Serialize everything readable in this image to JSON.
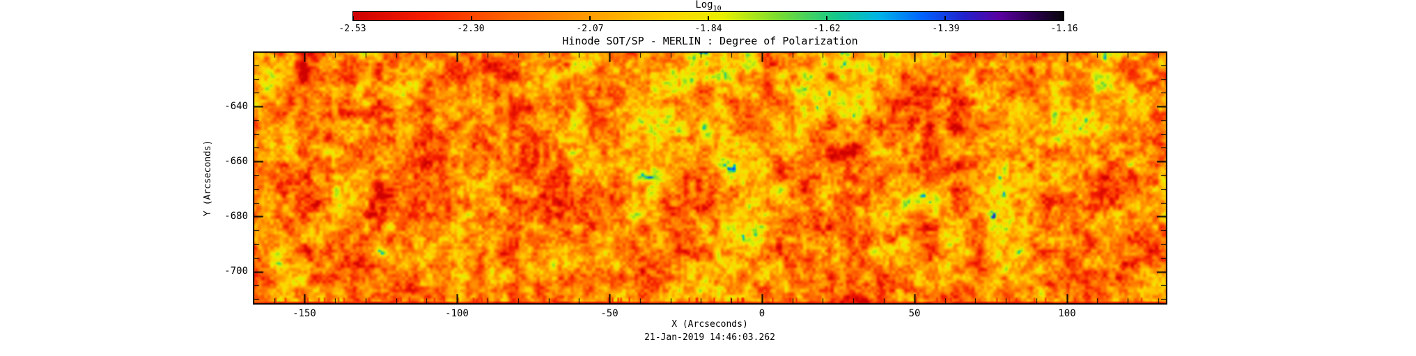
{
  "page": {
    "background": "#ffffff",
    "axis_color": "#000000"
  },
  "colorbar": {
    "label_main": "Log",
    "label_sub": "10",
    "tick_labels": [
      "-2.53",
      "-2.30",
      "-2.07",
      "-1.84",
      "-1.62",
      "-1.39",
      "-1.16"
    ]
  },
  "plot": {
    "title": "Hinode SOT/SP - MERLIN : Degree of Polarization",
    "xlabel": "X (Arcseconds)",
    "ylabel": "Y (Arcseconds)",
    "date_label": "21-Jan-2019 14:46:03.262",
    "x_tick_labels": [
      "-150",
      "-100",
      "-50",
      "0",
      "50",
      "100"
    ],
    "y_tick_labels": [
      "-640",
      "-660",
      "-680",
      "-700"
    ]
  },
  "chart_data": {
    "type": "heatmap",
    "title": "Hinode SOT/SP - MERLIN : Degree of Polarization",
    "xlabel": "X (Arcseconds)",
    "ylabel": "Y (Arcseconds)",
    "timestamp": "21-Jan-2019 14:46:03.262",
    "xlim": [
      -167,
      133
    ],
    "ylim": [
      -712,
      -620
    ],
    "x_ticks": [
      -150,
      -100,
      -50,
      0,
      50,
      100
    ],
    "y_ticks": [
      -640,
      -660,
      -680,
      -700
    ],
    "x_minor_step": 10,
    "y_minor_step": 5,
    "colorbar": {
      "label": "Log10",
      "quantity": "Degree of Polarization (log10)",
      "range": [
        -2.53,
        -1.16
      ],
      "ticks": [
        -2.53,
        -2.3,
        -2.07,
        -1.84,
        -1.62,
        -1.39,
        -1.16
      ]
    },
    "colormap": [
      {
        "t": 0.0,
        "color": "#cc0000"
      },
      {
        "t": 0.1,
        "color": "#f61e00"
      },
      {
        "t": 0.22,
        "color": "#ff6400"
      },
      {
        "t": 0.33,
        "color": "#ff9b00"
      },
      {
        "t": 0.44,
        "color": "#ffd200"
      },
      {
        "t": 0.52,
        "color": "#e8f000"
      },
      {
        "t": 0.6,
        "color": "#78dc32"
      },
      {
        "t": 0.68,
        "color": "#14c88c"
      },
      {
        "t": 0.74,
        "color": "#00b4e6"
      },
      {
        "t": 0.8,
        "color": "#0064ff"
      },
      {
        "t": 0.86,
        "color": "#2222cc"
      },
      {
        "t": 0.91,
        "color": "#5a00a0"
      },
      {
        "t": 0.96,
        "color": "#28004b"
      },
      {
        "t": 1.0,
        "color": "#060608"
      }
    ],
    "field_summary": "Granular solar scan map: bulk pixels near log10 -2.4 to -2.0 (red/orange/yellow mottling), abundant yellow-green speckles, sparse magnetic elements reaching -1.7 to -1.2 (green, cyan, blue, rare dark blobs); thin red artifact stripe with vertical streaks along the bottom edge and a reddish leftmost column.",
    "texture": {
      "seed": 20190121,
      "octave_cells": [
        36,
        18,
        9,
        4.5,
        2.2
      ],
      "octave_amps": [
        0.16,
        0.2,
        0.24,
        0.22,
        0.18
      ],
      "base": 0.3,
      "contrast": 1.05,
      "stripe_amp": 0.06,
      "spike_threshold": 0.78,
      "spike_gain": 3.0,
      "streak_prob": 0.07
    }
  }
}
